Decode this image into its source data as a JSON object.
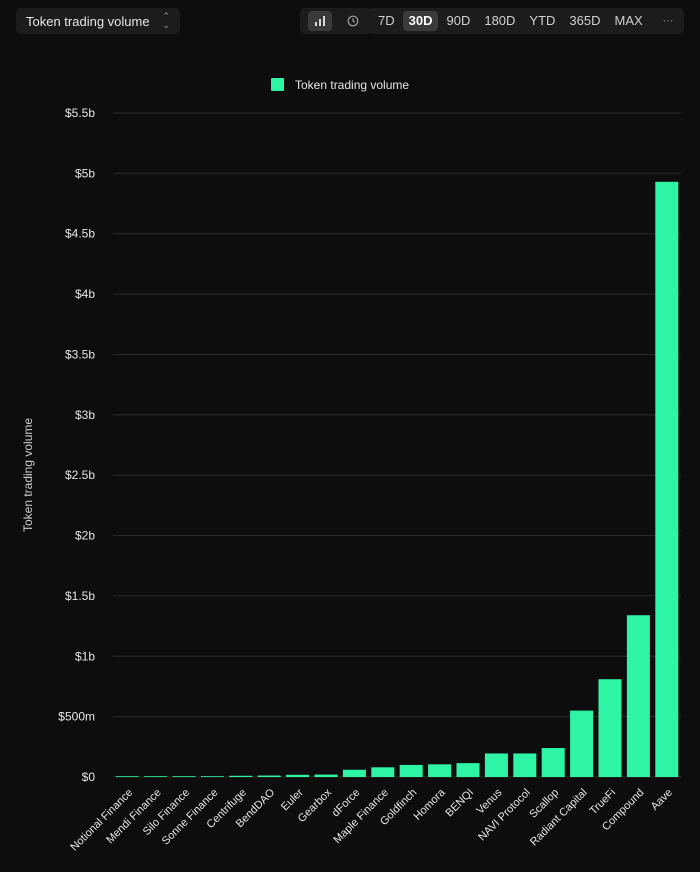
{
  "toolbar": {
    "metric_select": "Token trading volume",
    "time_ranges": [
      "7D",
      "30D",
      "90D",
      "180D",
      "YTD",
      "365D",
      "MAX"
    ],
    "active_range": "30D",
    "more_label": "···",
    "chart_type_icons": [
      "bar-chart-icon",
      "clock-icon"
    ],
    "active_chart_type": "bar-chart-icon"
  },
  "chart_data": {
    "type": "bar",
    "title": "",
    "xlabel": "",
    "ylabel": "Token trading volume",
    "legend": {
      "label": "Token trading volume",
      "position": "top-center"
    },
    "color": "#2ef5a6",
    "grid": true,
    "ylim": [
      0,
      5.5
    ],
    "y_ticks": [
      0,
      0.5,
      1,
      1.5,
      2,
      2.5,
      3,
      3.5,
      4,
      4.5,
      5,
      5.5
    ],
    "y_tick_labels": [
      "$0",
      "$500m",
      "$1b",
      "$1.5b",
      "$2b",
      "$2.5b",
      "$3b",
      "$3.5b",
      "$4b",
      "$4.5b",
      "$5b",
      "$5.5b"
    ],
    "categories": [
      "Notional Finance",
      "Mendi Finance",
      "Silo Finance",
      "Sonne Finance",
      "Centrifuge",
      "BendDAO",
      "Euler",
      "Gearbox",
      "dForce",
      "Maple Finance",
      "Goldfinch",
      "Homora",
      "BENQI",
      "Venus",
      "NAVI Protocol",
      "Scallop",
      "Radiant Capital",
      "TrueFi",
      "Compound",
      "Aave"
    ],
    "values": [
      0.001,
      0.002,
      0.003,
      0.005,
      0.01,
      0.012,
      0.018,
      0.02,
      0.06,
      0.08,
      0.1,
      0.105,
      0.115,
      0.195,
      0.195,
      0.24,
      0.55,
      0.81,
      1.34,
      4.93
    ]
  }
}
